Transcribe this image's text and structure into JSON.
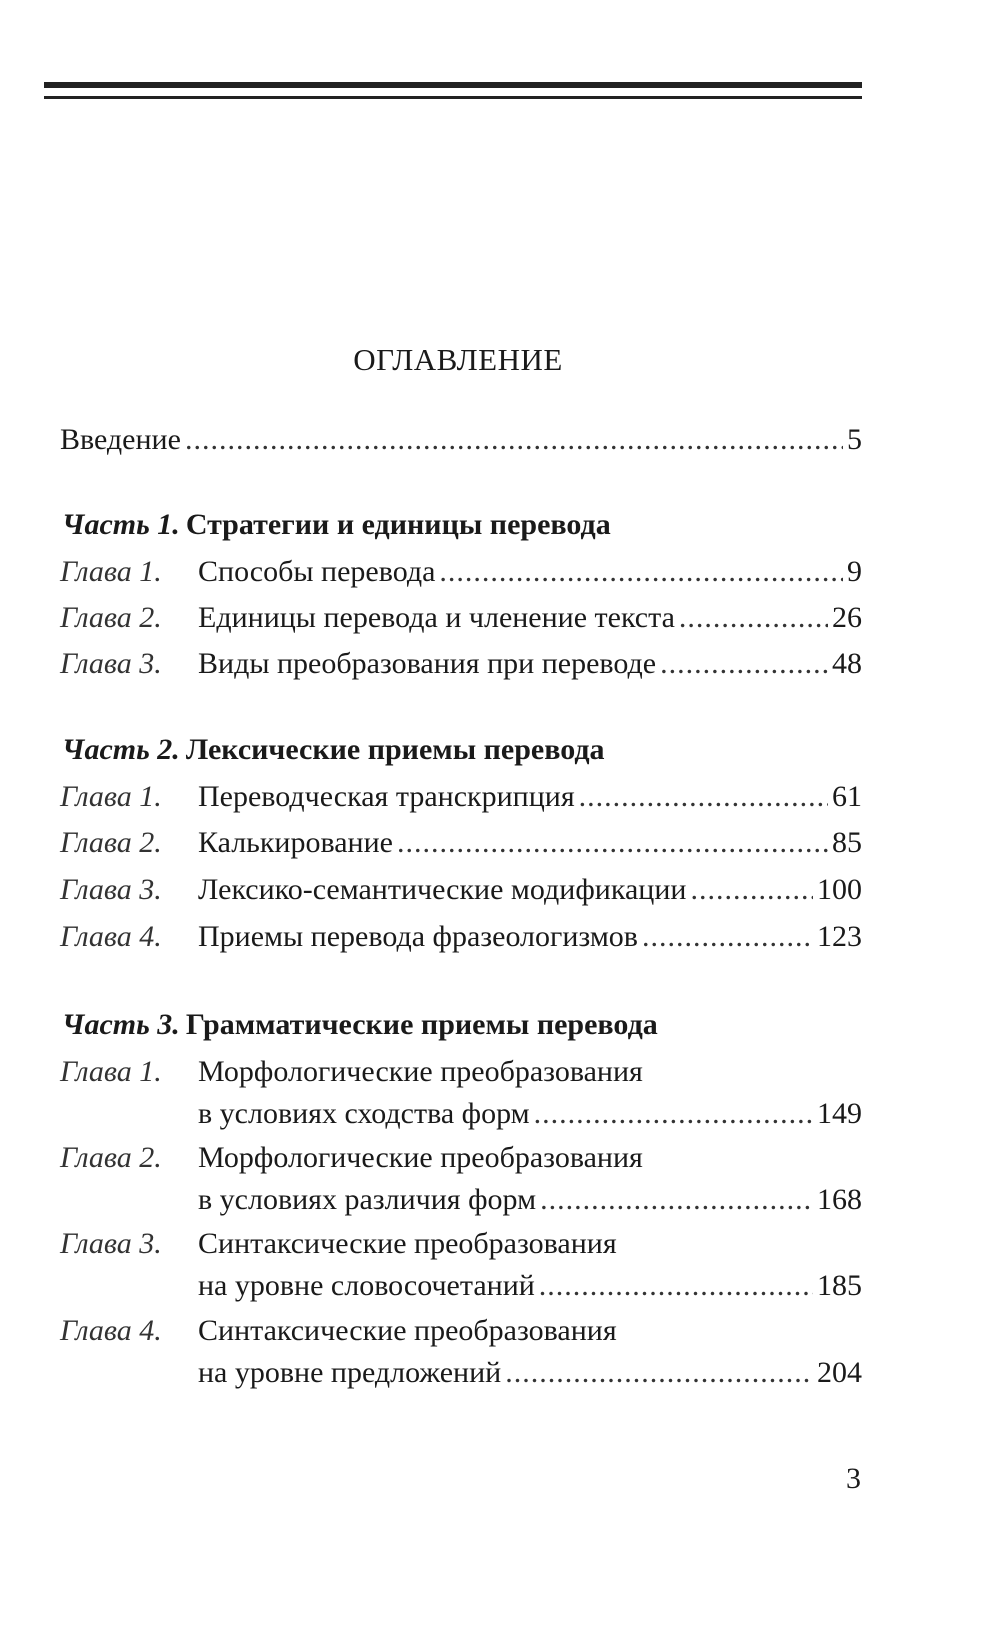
{
  "title": "ОГЛАВЛЕНИЕ",
  "intro": {
    "title": "Введение",
    "page": "5"
  },
  "parts": [
    {
      "label": "Часть 1.",
      "title": "Стратегии и единицы перевода",
      "chapters": [
        {
          "label": "Глава 1.",
          "title": "Способы перевода",
          "page": "9"
        },
        {
          "label": "Глава 2.",
          "title": "Единицы перевода и членение текста",
          "page": "26"
        },
        {
          "label": "Глава 3.",
          "title": "Виды преобразования при переводе",
          "page": "48"
        }
      ]
    },
    {
      "label": "Часть 2.",
      "title": "Лексические приемы перевода",
      "chapters": [
        {
          "label": "Глава 1.",
          "title": "Переводческая транскрипция",
          "page": "61"
        },
        {
          "label": "Глава 2.",
          "title": "Калькирование",
          "page": "85"
        },
        {
          "label": "Глава 3.",
          "title": "Лексико-семантические модификации",
          "page": "100"
        },
        {
          "label": "Глава 4.",
          "title": "Приемы перевода фразеологизмов",
          "page": "123"
        }
      ]
    },
    {
      "label": "Часть 3.",
      "title": "Грамматические приемы перевода",
      "chapters": [
        {
          "label": "Глава 1.",
          "title": "Морфологические преобразования",
          "title2": "в условиях сходства форм",
          "page": "149"
        },
        {
          "label": "Глава 2.",
          "title": "Морфологические преобразования",
          "title2": "в условиях различия форм",
          "page": "168"
        },
        {
          "label": "Глава 3.",
          "title": "Синтаксические преобразования",
          "title2": "на уровне словосочетаний",
          "page": "185"
        },
        {
          "label": "Глава 4.",
          "title": "Синтаксические преобразования",
          "title2": "на уровне предложений",
          "page": "204"
        }
      ]
    }
  ],
  "page_number": "3"
}
